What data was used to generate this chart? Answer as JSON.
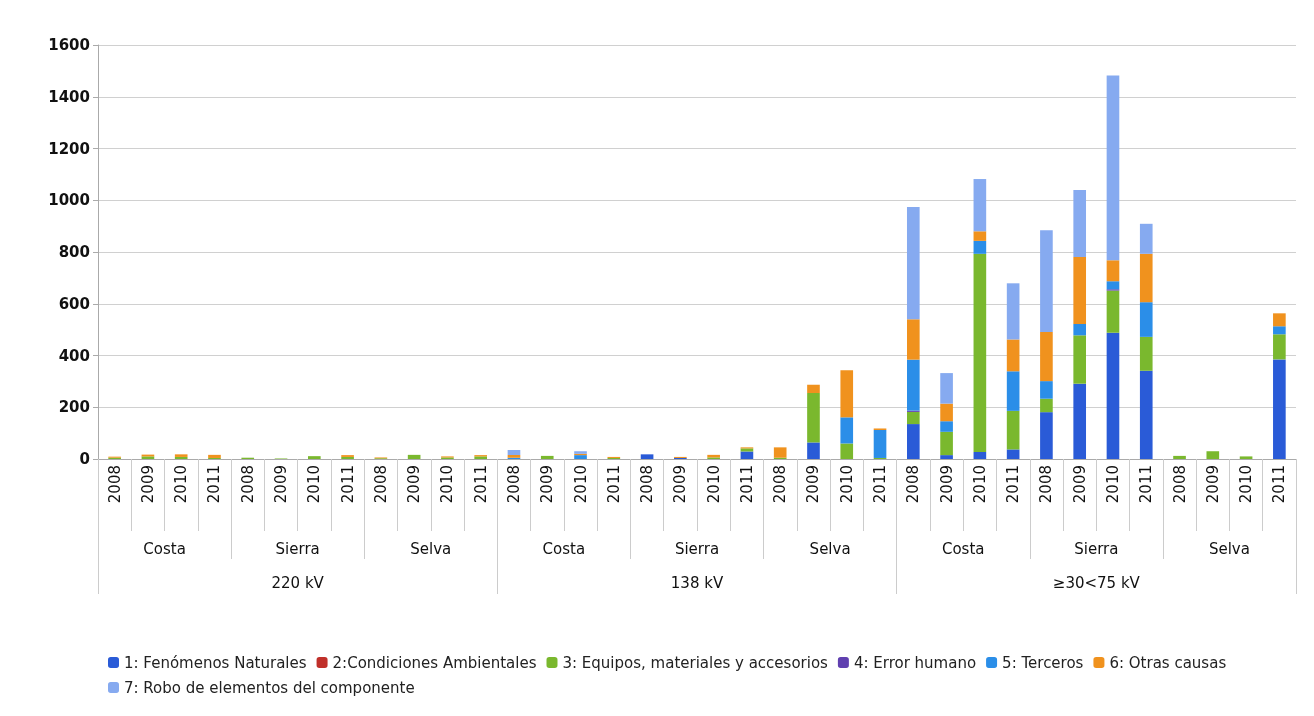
{
  "chart_data": {
    "type": "bar",
    "stacked": true,
    "categories": [
      "2008",
      "2009",
      "2010",
      "2011",
      "2008",
      "2009",
      "2010",
      "2011",
      "2008",
      "2009",
      "2010",
      "2011",
      "2008",
      "2009",
      "2010",
      "2011",
      "2008",
      "2009",
      "2010",
      "2011",
      "2008",
      "2009",
      "2010",
      "2011",
      "2008",
      "2009",
      "2010",
      "2011",
      "2008",
      "2009",
      "2010",
      "2011",
      "2008",
      "2009",
      "2010",
      "2011"
    ],
    "annotations": [
      "Costa",
      "Sierra",
      "Selva",
      "Costa",
      "Sierra",
      "Selva",
      "Costa",
      "Sierra",
      "Selva",
      "220 kV",
      "138 kV",
      "≥30<75 kV"
    ],
    "series": [
      {
        "name": "1: Fenómenos Naturales",
        "color": "#2a5bd7",
        "values": [
          0,
          0,
          0,
          0,
          0,
          0,
          0,
          0,
          0,
          0,
          0,
          0,
          0,
          0,
          0,
          0,
          18,
          4,
          0,
          29,
          0,
          64,
          0,
          0,
          135,
          15,
          27,
          37,
          181,
          291,
          488,
          341,
          0,
          0,
          0,
          385
        ]
      },
      {
        "name": "2:Condiciones Ambientales",
        "color": "#c0302a",
        "values": [
          0,
          0,
          0,
          0,
          0,
          0,
          0,
          0,
          0,
          0,
          0,
          0,
          0,
          0,
          0,
          0,
          0,
          0,
          0,
          0,
          0,
          0,
          0,
          0,
          0,
          0,
          0,
          0,
          0,
          0,
          0,
          0,
          0,
          0,
          0,
          0
        ]
      },
      {
        "name": "3: Equipos, materiales y accesorios",
        "color": "#7ab82e",
        "values": [
          5,
          10,
          8,
          4,
          5,
          2,
          11,
          8,
          3,
          16,
          6,
          10,
          0,
          12,
          0,
          4,
          0,
          0,
          6,
          12,
          5,
          191,
          60,
          4,
          47,
          90,
          766,
          149,
          52,
          187,
          163,
          131,
          12,
          30,
          10,
          97
        ]
      },
      {
        "name": "4: Error humano",
        "color": "#6040b0",
        "values": [
          0,
          0,
          0,
          0,
          0,
          0,
          0,
          0,
          0,
          0,
          0,
          0,
          0,
          0,
          0,
          0,
          0,
          0,
          0,
          0,
          0,
          0,
          0,
          0,
          5,
          0,
          0,
          0,
          0,
          0,
          5,
          0,
          0,
          0,
          0,
          0
        ]
      },
      {
        "name": "5: Terceros",
        "color": "#2b8ee8",
        "values": [
          0,
          0,
          0,
          0,
          0,
          0,
          0,
          0,
          0,
          0,
          0,
          0,
          5,
          0,
          15,
          0,
          0,
          0,
          0,
          0,
          0,
          0,
          101,
          108,
          197,
          41,
          50,
          153,
          68,
          44,
          31,
          134,
          0,
          0,
          0,
          31
        ]
      },
      {
        "name": "6: Otras causas",
        "color": "#f0921e",
        "values": [
          4,
          7,
          10,
          12,
          0,
          0,
          0,
          7,
          3,
          0,
          4,
          5,
          10,
          0,
          5,
          4,
          0,
          4,
          10,
          4,
          40,
          32,
          182,
          6,
          156,
          68,
          37,
          123,
          190,
          259,
          81,
          187,
          0,
          0,
          0,
          50
        ]
      },
      {
        "name": "7: Robo de elementos del componente",
        "color": "#86aaf0",
        "values": [
          0,
          0,
          0,
          0,
          0,
          0,
          0,
          0,
          0,
          0,
          0,
          0,
          20,
          0,
          10,
          0,
          0,
          0,
          0,
          0,
          0,
          0,
          0,
          0,
          434,
          118,
          202,
          217,
          393,
          259,
          714,
          116,
          0,
          0,
          0,
          0
        ]
      }
    ],
    "ylim": [
      0,
      1600
    ],
    "yticks": [
      0,
      200,
      400,
      600,
      800,
      1000,
      1200,
      1400,
      1600
    ],
    "grid": "y",
    "legend": "bottom"
  }
}
